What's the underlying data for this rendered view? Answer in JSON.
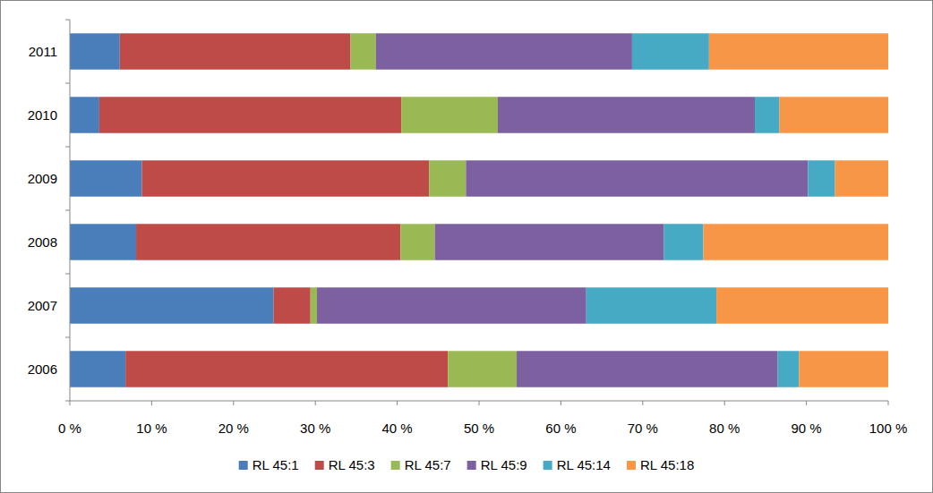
{
  "chart_data": {
    "type": "bar",
    "orientation": "horizontal",
    "stacked": true,
    "grid": false,
    "legend": "bottom",
    "categories": [
      "2006",
      "2007",
      "2008",
      "2009",
      "2010",
      "2011"
    ],
    "xlim": [
      0,
      100
    ],
    "xticks": [
      {
        "value": 0,
        "label": "0 %"
      },
      {
        "value": 10,
        "label": "10 %"
      },
      {
        "value": 20,
        "label": "20 %"
      },
      {
        "value": 30,
        "label": "30 %"
      },
      {
        "value": 40,
        "label": "40 %"
      },
      {
        "value": 50,
        "label": "50 %"
      },
      {
        "value": 60,
        "label": "60 %"
      },
      {
        "value": 70,
        "label": "70 %"
      },
      {
        "value": 80,
        "label": "80 %"
      },
      {
        "value": 90,
        "label": "90 %"
      },
      {
        "value": 100,
        "label": "100 %"
      }
    ],
    "series": [
      {
        "name": "RL 45:1",
        "color": "#4a7ebb",
        "values": [
          6.8,
          24.9,
          8.1,
          8.8,
          3.6,
          6.1
        ]
      },
      {
        "name": "RL 45:3",
        "color": "#be4b48",
        "values": [
          39.4,
          4.5,
          32.3,
          35.1,
          36.9,
          28.2
        ]
      },
      {
        "name": "RL 45:7",
        "color": "#98b954",
        "values": [
          8.4,
          0.8,
          4.2,
          4.5,
          11.8,
          3.1
        ]
      },
      {
        "name": "RL 45:9",
        "color": "#7d60a0",
        "values": [
          31.9,
          32.9,
          28.0,
          41.8,
          31.4,
          31.3
        ]
      },
      {
        "name": "RL 45:14",
        "color": "#46aac5",
        "values": [
          2.6,
          15.9,
          4.8,
          3.3,
          3.0,
          9.4
        ]
      },
      {
        "name": "RL 45:18",
        "color": "#f79646",
        "values": [
          10.9,
          21.0,
          22.6,
          6.5,
          13.3,
          21.9
        ]
      }
    ]
  }
}
